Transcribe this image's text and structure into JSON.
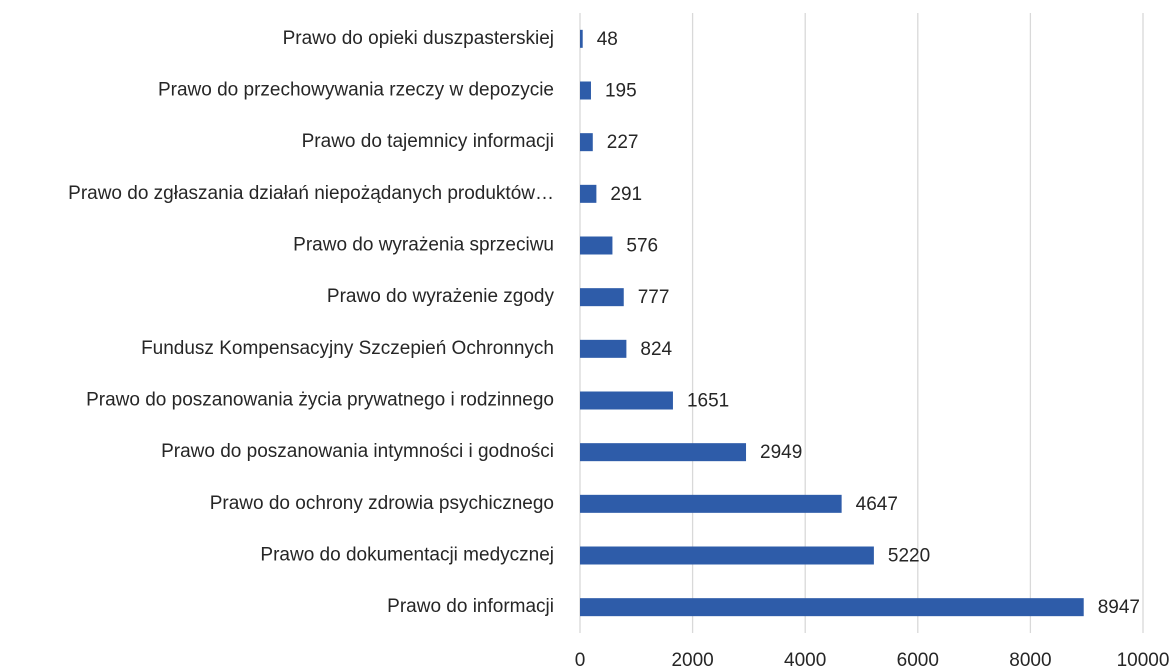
{
  "chart_data": {
    "type": "barh",
    "categories": [
      "Prawo do opieki duszpasterskiej",
      "Prawo do przechowywania rzeczy w depozycie",
      "Prawo do tajemnicy informacji",
      "Prawo do zgłaszania działań niepożądanych produktów…",
      "Prawo do wyrażenia sprzeciwu",
      "Prawo do wyrażenie zgody",
      "Fundusz Kompensacyjny Szczepień Ochronnych",
      "Prawo do poszanowania życia prywatnego i rodzinnego",
      "Prawo do poszanowania intymności i godności",
      "Prawo do ochrony zdrowia psychicznego",
      "Prawo do dokumentacji medycznej",
      "Prawo do informacji"
    ],
    "values": [
      48,
      195,
      227,
      291,
      576,
      777,
      824,
      1651,
      2949,
      4647,
      5220,
      8947
    ],
    "color": "#2e5ca9",
    "xlim": [
      0,
      10000
    ],
    "xticks": [
      0,
      2000,
      4000,
      6000,
      8000,
      10000
    ],
    "grid": true
  }
}
